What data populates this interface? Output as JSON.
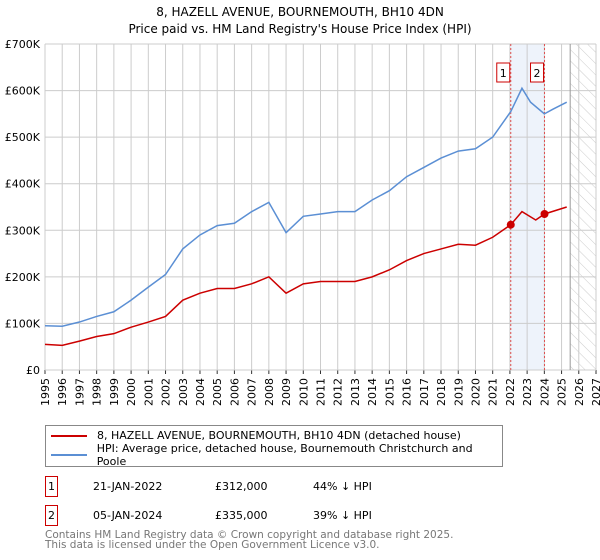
{
  "chart_data": {
    "type": "line",
    "title": "8, HAZELL AVENUE, BOURNEMOUTH, BH10 4DN",
    "subtitle": "Price paid vs. HM Land Registry's House Price Index (HPI)",
    "xlim": [
      1995,
      2027
    ],
    "ylim": [
      0,
      700000
    ],
    "yticks": [
      {
        "v": 0,
        "label": "£0"
      },
      {
        "v": 100000,
        "label": "£100K"
      },
      {
        "v": 200000,
        "label": "£200K"
      },
      {
        "v": 300000,
        "label": "£300K"
      },
      {
        "v": 400000,
        "label": "£400K"
      },
      {
        "v": 500000,
        "label": "£500K"
      },
      {
        "v": 600000,
        "label": "£600K"
      },
      {
        "v": 700000,
        "label": "£700K"
      }
    ],
    "xticks": [
      "1995",
      "1996",
      "1997",
      "1998",
      "1999",
      "2000",
      "2001",
      "2002",
      "2003",
      "2004",
      "2005",
      "2006",
      "2007",
      "2008",
      "2009",
      "2010",
      "2011",
      "2012",
      "2013",
      "2014",
      "2015",
      "2016",
      "2017",
      "2018",
      "2019",
      "2020",
      "2021",
      "2022",
      "2023",
      "2024",
      "2025",
      "2026",
      "2027"
    ],
    "grid": true,
    "series": [
      {
        "name": "8, HAZELL AVENUE, BOURNEMOUTH, BH10 4DN (detached house)",
        "color": "#cc0000",
        "x": [
          1995,
          1996,
          1997,
          1998,
          1999,
          2000,
          2001,
          2002,
          2003,
          2004,
          2005,
          2006,
          2007,
          2008,
          2009,
          2010,
          2011,
          2012,
          2013,
          2014,
          2015,
          2016,
          2017,
          2018,
          2019,
          2020,
          2021,
          2022.05,
          2022.7,
          2023.5,
          2024.01,
          2025.3
        ],
        "y": [
          55000,
          53000,
          62000,
          72000,
          78000,
          92000,
          103000,
          115000,
          150000,
          165000,
          175000,
          175000,
          185000,
          200000,
          165000,
          185000,
          190000,
          190000,
          190000,
          200000,
          215000,
          235000,
          250000,
          260000,
          270000,
          268000,
          285000,
          312000,
          340000,
          322000,
          335000,
          350000
        ]
      },
      {
        "name": "HPI: Average price, detached house, Bournemouth Christchurch and Poole",
        "color": "#5b8fd4",
        "x": [
          1995,
          1996,
          1997,
          1998,
          1999,
          2000,
          2001,
          2002,
          2003,
          2004,
          2005,
          2006,
          2007,
          2008,
          2009,
          2010,
          2011,
          2012,
          2013,
          2014,
          2015,
          2016,
          2017,
          2018,
          2019,
          2020,
          2021,
          2022.05,
          2022.7,
          2023.2,
          2024,
          2024.5,
          2025.3
        ],
        "y": [
          95000,
          94000,
          103000,
          115000,
          125000,
          150000,
          178000,
          205000,
          260000,
          290000,
          310000,
          315000,
          340000,
          360000,
          295000,
          330000,
          335000,
          340000,
          340000,
          365000,
          385000,
          415000,
          435000,
          455000,
          470000,
          475000,
          500000,
          555000,
          605000,
          575000,
          550000,
          560000,
          575000
        ]
      }
    ],
    "annotations": [
      {
        "label": "1",
        "x": 2022.05,
        "y": 312000
      },
      {
        "label": "2",
        "x": 2024.01,
        "y": 335000
      }
    ],
    "forecast_start": 2025.5
  },
  "sales": [
    {
      "num": "1",
      "date": "21-JAN-2022",
      "price": "£312,000",
      "delta": "44% ↓ HPI"
    },
    {
      "num": "2",
      "date": "05-JAN-2024",
      "price": "£335,000",
      "delta": "39% ↓ HPI"
    }
  ],
  "footer": {
    "line1": "Contains HM Land Registry data © Crown copyright and database right 2025.",
    "line2": "This data is licensed under the Open Government Licence v3.0."
  }
}
